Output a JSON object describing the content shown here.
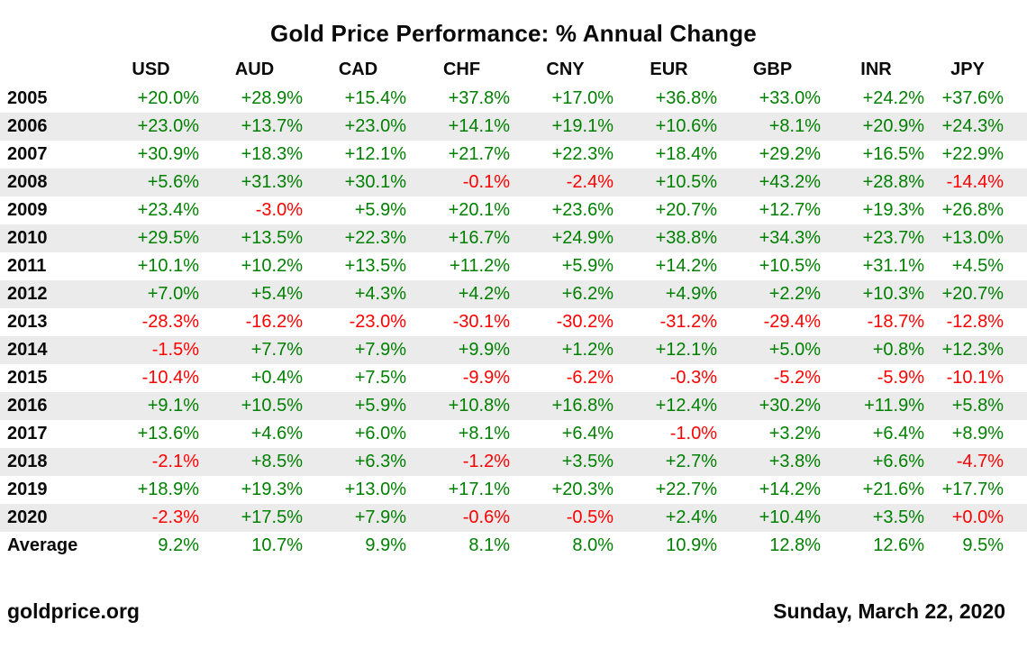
{
  "title": "Gold Price Performance: % Annual Change",
  "footer": {
    "site": "goldprice.org",
    "date": "Sunday, March 22, 2020"
  },
  "colors": {
    "positive_green": "#008000",
    "negative_red": "#ff0000",
    "row_stripe": "#ebebeb",
    "text": "#0a0a0a"
  },
  "chart_data": {
    "type": "table",
    "title": "Gold Price Performance: % Annual Change",
    "columns": [
      "USD",
      "AUD",
      "CAD",
      "CHF",
      "CNY",
      "EUR",
      "GBP",
      "INR",
      "JPY"
    ],
    "rows": [
      {
        "label": "2005",
        "values": [
          "+20.0%",
          "+28.9%",
          "+15.4%",
          "+37.8%",
          "+17.0%",
          "+36.8%",
          "+33.0%",
          "+24.2%",
          "+37.6%"
        ]
      },
      {
        "label": "2006",
        "values": [
          "+23.0%",
          "+13.7%",
          "+23.0%",
          "+14.1%",
          "+19.1%",
          "+10.6%",
          "+8.1%",
          "+20.9%",
          "+24.3%"
        ]
      },
      {
        "label": "2007",
        "values": [
          "+30.9%",
          "+18.3%",
          "+12.1%",
          "+21.7%",
          "+22.3%",
          "+18.4%",
          "+29.2%",
          "+16.5%",
          "+22.9%"
        ]
      },
      {
        "label": "2008",
        "values": [
          "+5.6%",
          "+31.3%",
          "+30.1%",
          "-0.1%",
          "-2.4%",
          "+10.5%",
          "+43.2%",
          "+28.8%",
          "-14.4%"
        ]
      },
      {
        "label": "2009",
        "values": [
          "+23.4%",
          "-3.0%",
          "+5.9%",
          "+20.1%",
          "+23.6%",
          "+20.7%",
          "+12.7%",
          "+19.3%",
          "+26.8%"
        ]
      },
      {
        "label": "2010",
        "values": [
          "+29.5%",
          "+13.5%",
          "+22.3%",
          "+16.7%",
          "+24.9%",
          "+38.8%",
          "+34.3%",
          "+23.7%",
          "+13.0%"
        ]
      },
      {
        "label": "2011",
        "values": [
          "+10.1%",
          "+10.2%",
          "+13.5%",
          "+11.2%",
          "+5.9%",
          "+14.2%",
          "+10.5%",
          "+31.1%",
          "+4.5%"
        ]
      },
      {
        "label": "2012",
        "values": [
          "+7.0%",
          "+5.4%",
          "+4.3%",
          "+4.2%",
          "+6.2%",
          "+4.9%",
          "+2.2%",
          "+10.3%",
          "+20.7%"
        ]
      },
      {
        "label": "2013",
        "values": [
          "-28.3%",
          "-16.2%",
          "-23.0%",
          "-30.1%",
          "-30.2%",
          "-31.2%",
          "-29.4%",
          "-18.7%",
          "-12.8%"
        ]
      },
      {
        "label": "2014",
        "values": [
          "-1.5%",
          "+7.7%",
          "+7.9%",
          "+9.9%",
          "+1.2%",
          "+12.1%",
          "+5.0%",
          "+0.8%",
          "+12.3%"
        ]
      },
      {
        "label": "2015",
        "values": [
          "-10.4%",
          "+0.4%",
          "+7.5%",
          "-9.9%",
          "-6.2%",
          "-0.3%",
          "-5.2%",
          "-5.9%",
          "-10.1%"
        ]
      },
      {
        "label": "2016",
        "values": [
          "+9.1%",
          "+10.5%",
          "+5.9%",
          "+10.8%",
          "+16.8%",
          "+12.4%",
          "+30.2%",
          "+11.9%",
          "+5.8%"
        ]
      },
      {
        "label": "2017",
        "values": [
          "+13.6%",
          "+4.6%",
          "+6.0%",
          "+8.1%",
          "+6.4%",
          "-1.0%",
          "+3.2%",
          "+6.4%",
          "+8.9%"
        ]
      },
      {
        "label": "2018",
        "values": [
          "-2.1%",
          "+8.5%",
          "+6.3%",
          "-1.2%",
          "+3.5%",
          "+2.7%",
          "+3.8%",
          "+6.6%",
          "-4.7%"
        ]
      },
      {
        "label": "2019",
        "values": [
          "+18.9%",
          "+19.3%",
          "+13.0%",
          "+17.1%",
          "+20.3%",
          "+22.7%",
          "+14.2%",
          "+21.6%",
          "+17.7%"
        ]
      },
      {
        "label": "2020",
        "values": [
          "-2.3%",
          "+17.5%",
          "+7.9%",
          "-0.6%",
          "-0.5%",
          "+2.4%",
          "+10.4%",
          "+3.5%",
          "+0.0%"
        ]
      },
      {
        "label": "Average",
        "values": [
          "9.2%",
          "10.7%",
          "9.9%",
          "8.1%",
          "8.0%",
          "10.9%",
          "12.8%",
          "12.6%",
          "9.5%"
        ]
      }
    ]
  }
}
